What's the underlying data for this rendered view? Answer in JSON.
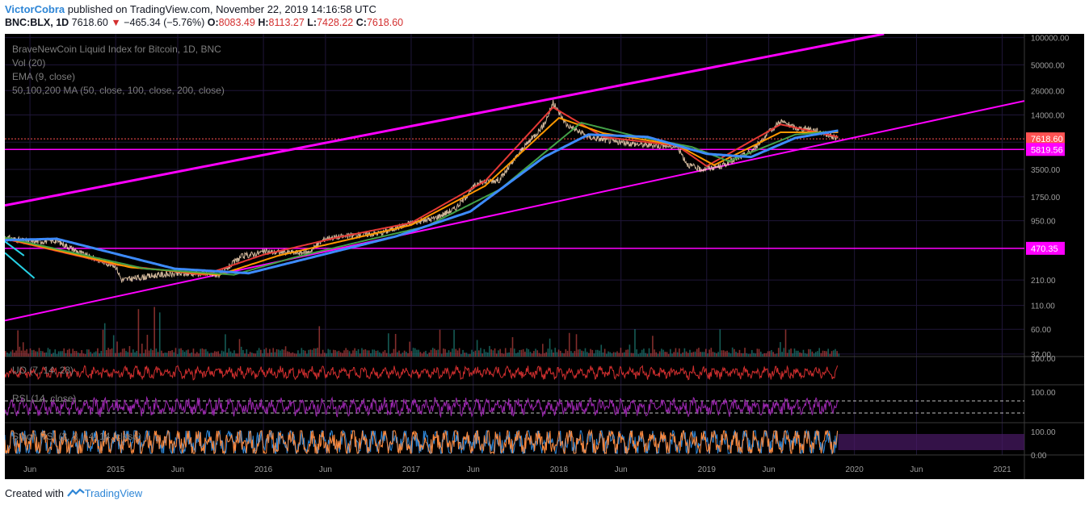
{
  "header": {
    "author": "VictorCobra",
    "published": "published on TradingView.com, November 22, 2019 14:16:58 UTC",
    "symbol": "BNC:BLX, 1D",
    "last": "7618.60",
    "change_arrow": "▼",
    "change": "−465.34 (−5.76%)",
    "o_label": "O:",
    "o": "8083.49",
    "h_label": "H:",
    "h": "8113.27",
    "l_label": "L:",
    "l": "7428.22",
    "c_label": "C:",
    "c": "7618.60"
  },
  "legend": [
    "BraveNewCoin Liquid Index for Bitcoin, 1D, BNC",
    "Vol (20)",
    "EMA (9, close)",
    "50,100,200 MA (50, close, 100, close, 200, close)"
  ],
  "panes": {
    "uo_label": "UO (7, 14, 28)",
    "uo_tick": "100.00",
    "rsi_label": "RSI (14, close)",
    "rsi_tick": "100.00",
    "stoch_label": "Stoch RSI (3, 3, 14, 14, close)",
    "stoch_ticks": [
      "100.00",
      "0.00"
    ]
  },
  "footer": {
    "created_with": "Created with",
    "brand": "TradingView"
  },
  "colors": {
    "background": "#000000",
    "grid": "#1f1638",
    "channel": "#ff00ff",
    "ema": "#e53935",
    "ma50": "#ff9800",
    "ma100": "#43a047",
    "ma200": "#3d8bfd",
    "price": "#f2d3b3",
    "trend_cyan": "#27d3e6",
    "uo": "#d32f2f",
    "rsi": "#9c27b0",
    "stoch_k": "#2e86d6",
    "stoch_d": "#ff8a3d",
    "last_price_label": "#ff5252"
  },
  "chart_data": {
    "type": "line",
    "title": "BraveNewCoin Liquid Index for Bitcoin, 1D, BNC",
    "y_scale": "log",
    "y_ticks": [
      100000,
      50000,
      26000,
      14000,
      7000,
      3500,
      1750,
      950,
      470,
      210,
      110,
      60,
      32
    ],
    "y_tick_labels": [
      "100000.00",
      "50000.00",
      "26000.00",
      "14000.00",
      "7000.00",
      "3500.00",
      "1750.00",
      "950.00",
      "470.00",
      "210.00",
      "110.00",
      "60.00",
      "32.00"
    ],
    "x_tick_labels": [
      "Jun",
      "2015",
      "Jun",
      "2016",
      "Jun",
      "2017",
      "Jun",
      "2018",
      "Jun",
      "2019",
      "Jun",
      "2020",
      "Jun",
      "2021"
    ],
    "x_ticks": [
      2014.42,
      2015.0,
      2015.42,
      2016.0,
      2016.42,
      2017.0,
      2017.42,
      2018.0,
      2018.42,
      2019.0,
      2019.42,
      2020.0,
      2020.42,
      2021.0
    ],
    "xlim": [
      2014.25,
      2021.15
    ],
    "ylim": [
      30,
      110000
    ],
    "series": [
      {
        "name": "BNC:BLX",
        "x": [
          2014.25,
          2014.4,
          2014.6,
          2014.8,
          2015.0,
          2015.04,
          2015.3,
          2015.55,
          2015.7,
          2015.85,
          2016.0,
          2016.3,
          2016.42,
          2016.6,
          2016.8,
          2017.0,
          2017.15,
          2017.3,
          2017.45,
          2017.6,
          2017.75,
          2017.9,
          2017.96,
          2018.05,
          2018.2,
          2018.4,
          2018.6,
          2018.8,
          2018.87,
          2018.95,
          2019.1,
          2019.3,
          2019.45,
          2019.5,
          2019.6,
          2019.7,
          2019.8,
          2019.89
        ],
        "y": [
          620,
          560,
          570,
          390,
          300,
          210,
          240,
          250,
          240,
          380,
          430,
          420,
          610,
          650,
          700,
          900,
          1000,
          1300,
          2500,
          2700,
          5800,
          11000,
          19000,
          11000,
          8000,
          7000,
          6500,
          6300,
          4000,
          3500,
          3800,
          5500,
          10000,
          12000,
          10000,
          9800,
          8800,
          7618.6
        ]
      },
      {
        "name": "EMA (9, close)",
        "x": [
          2014.25,
          2015.0,
          2015.6,
          2016.0,
          2016.5,
          2017.0,
          2017.5,
          2017.96,
          2018.3,
          2018.8,
          2019.0,
          2019.5,
          2019.89
        ],
        "y": [
          600,
          310,
          240,
          400,
          620,
          900,
          2600,
          17000,
          8000,
          6400,
          3800,
          11000,
          8000
        ]
      },
      {
        "name": "MA 50",
        "x": [
          2014.25,
          2015.1,
          2015.7,
          2016.1,
          2016.6,
          2017.0,
          2017.5,
          2018.0,
          2018.3,
          2018.8,
          2019.05,
          2019.5,
          2019.89
        ],
        "y": [
          610,
          290,
          240,
          390,
          600,
          850,
          2300,
          13000,
          8800,
          6500,
          3900,
          9000,
          9000
        ]
      },
      {
        "name": "MA 100",
        "x": [
          2014.25,
          2015.2,
          2015.8,
          2016.2,
          2016.7,
          2017.1,
          2017.6,
          2018.15,
          2018.5,
          2018.9,
          2019.15,
          2019.6,
          2019.89
        ],
        "y": [
          620,
          280,
          240,
          370,
          580,
          820,
          2100,
          11500,
          8300,
          6200,
          4300,
          8500,
          9300
        ]
      },
      {
        "name": "MA 200",
        "x": [
          2014.25,
          2014.6,
          2015.4,
          2015.9,
          2016.4,
          2016.9,
          2017.4,
          2017.9,
          2018.2,
          2018.6,
          2019.0,
          2019.3,
          2019.6,
          2019.89
        ],
        "y": [
          580,
          600,
          280,
          250,
          400,
          640,
          1200,
          4800,
          8500,
          8000,
          5200,
          4800,
          7800,
          9400
        ]
      }
    ],
    "horizontal_levels": [
      {
        "value": 5819.56,
        "label": "5819.56"
      },
      {
        "value": 470.35,
        "label": "470.35"
      }
    ],
    "last_price": {
      "value": 7618.6,
      "label": "7618.60"
    },
    "channel_lines": [
      {
        "x": [
          2014.25,
          2020.2
        ],
        "y": [
          1400,
          110000
        ]
      },
      {
        "x": [
          2014.25,
          2021.15
        ],
        "y": [
          75,
          20000
        ]
      }
    ],
    "trend_lines": [
      {
        "x": [
          2014.25,
          2014.45
        ],
        "y": [
          420,
          220
        ]
      },
      {
        "x": [
          2014.25,
          2014.38
        ],
        "y": [
          560,
          390
        ]
      }
    ]
  }
}
